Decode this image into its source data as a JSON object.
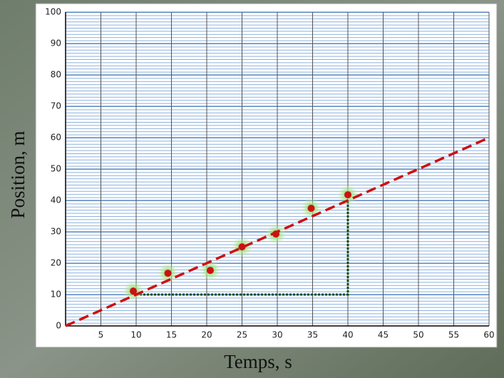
{
  "chart_data": {
    "type": "scatter",
    "x_label": "Temps, s",
    "y_label": "Position, m",
    "x": [
      9.6,
      14.5,
      20.5,
      25,
      29.8,
      34.8,
      40
    ],
    "series": [
      {
        "color": "#cc1111",
        "values": [
          11.1,
          16.8,
          17.7,
          25.2,
          29.3,
          37.5,
          41.8
        ]
      }
    ],
    "trend_line": {
      "color": "#cc1111",
      "x": [
        0,
        60
      ],
      "y": [
        0,
        60
      ]
    },
    "slope_guide": {
      "color": "#0b4d0b",
      "x": [
        10,
        40,
        40
      ],
      "y": [
        10,
        10,
        40
      ]
    },
    "xlim": [
      0,
      60
    ],
    "ylim": [
      0,
      100
    ],
    "xticks": [
      5,
      10,
      15,
      20,
      25,
      30,
      35,
      40,
      45,
      50,
      55,
      60
    ],
    "yticks": [
      0,
      10,
      20,
      30,
      40,
      50,
      60,
      70,
      80,
      90,
      100
    ],
    "grid": true
  }
}
